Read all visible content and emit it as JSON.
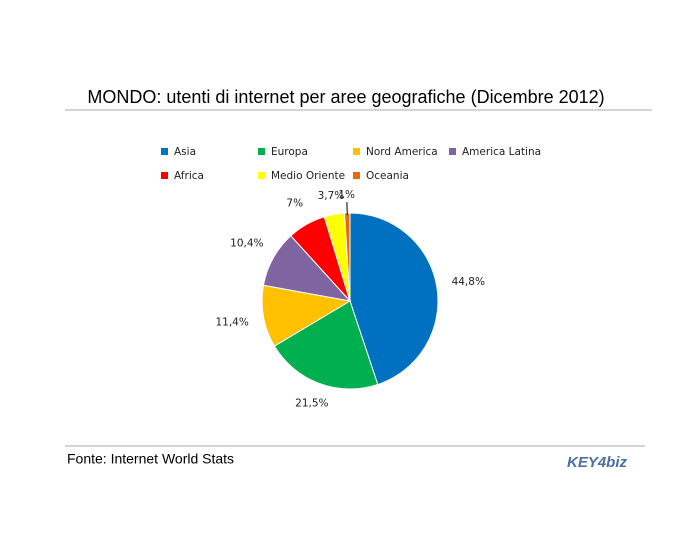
{
  "chart_data": {
    "type": "pie",
    "title": "MONDO: utenti di internet per aree geografiche (Dicembre 2012)",
    "categories": [
      "Asia",
      "Europa",
      "Nord America",
      "America Latina",
      "Africa",
      "Medio Oriente",
      "Oceania"
    ],
    "values": [
      44.8,
      21.5,
      11.4,
      10.4,
      7,
      3.7,
      1
    ],
    "value_labels": [
      "44,8%",
      "21,5%",
      "11,4%",
      "10,4%",
      "7%",
      "3,7%",
      "1%"
    ],
    "colors": [
      "#0070c0",
      "#00b050",
      "#ffc000",
      "#8064a2",
      "#ff0000",
      "#ffff00",
      "#e46c0a"
    ],
    "legend": "top",
    "source": "Fonte: Internet World Stats",
    "logo": "KEY4biz"
  }
}
